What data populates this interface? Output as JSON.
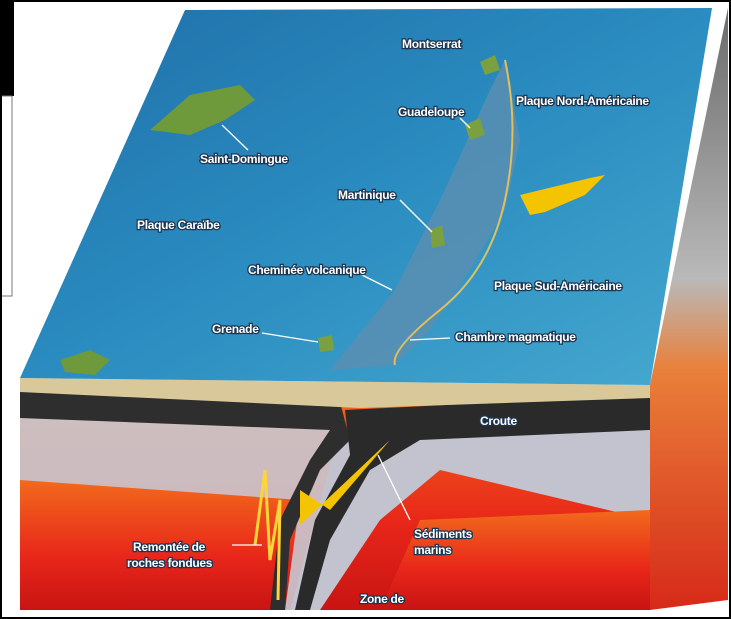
{
  "labels": [
    {
      "text": "Montserrat"
    },
    {
      "text": "Plaque Nord-Américaine"
    },
    {
      "text": "Guadeloupe"
    },
    {
      "text": "Saint-Domingue"
    },
    {
      "text": "Martinique"
    },
    {
      "text": "Plaque Caraïbe"
    },
    {
      "text": "Cheminée volcanique"
    },
    {
      "text": "Plaque Sud-Américaine"
    },
    {
      "text": "Grenade"
    },
    {
      "text": "Chambre magmatique"
    },
    {
      "text": "Croute"
    },
    {
      "text": "Sédiments"
    },
    {
      "text": "marins"
    },
    {
      "text": "Remontée de"
    },
    {
      "text": "roches fondues"
    },
    {
      "text": "Zone de"
    }
  ]
}
